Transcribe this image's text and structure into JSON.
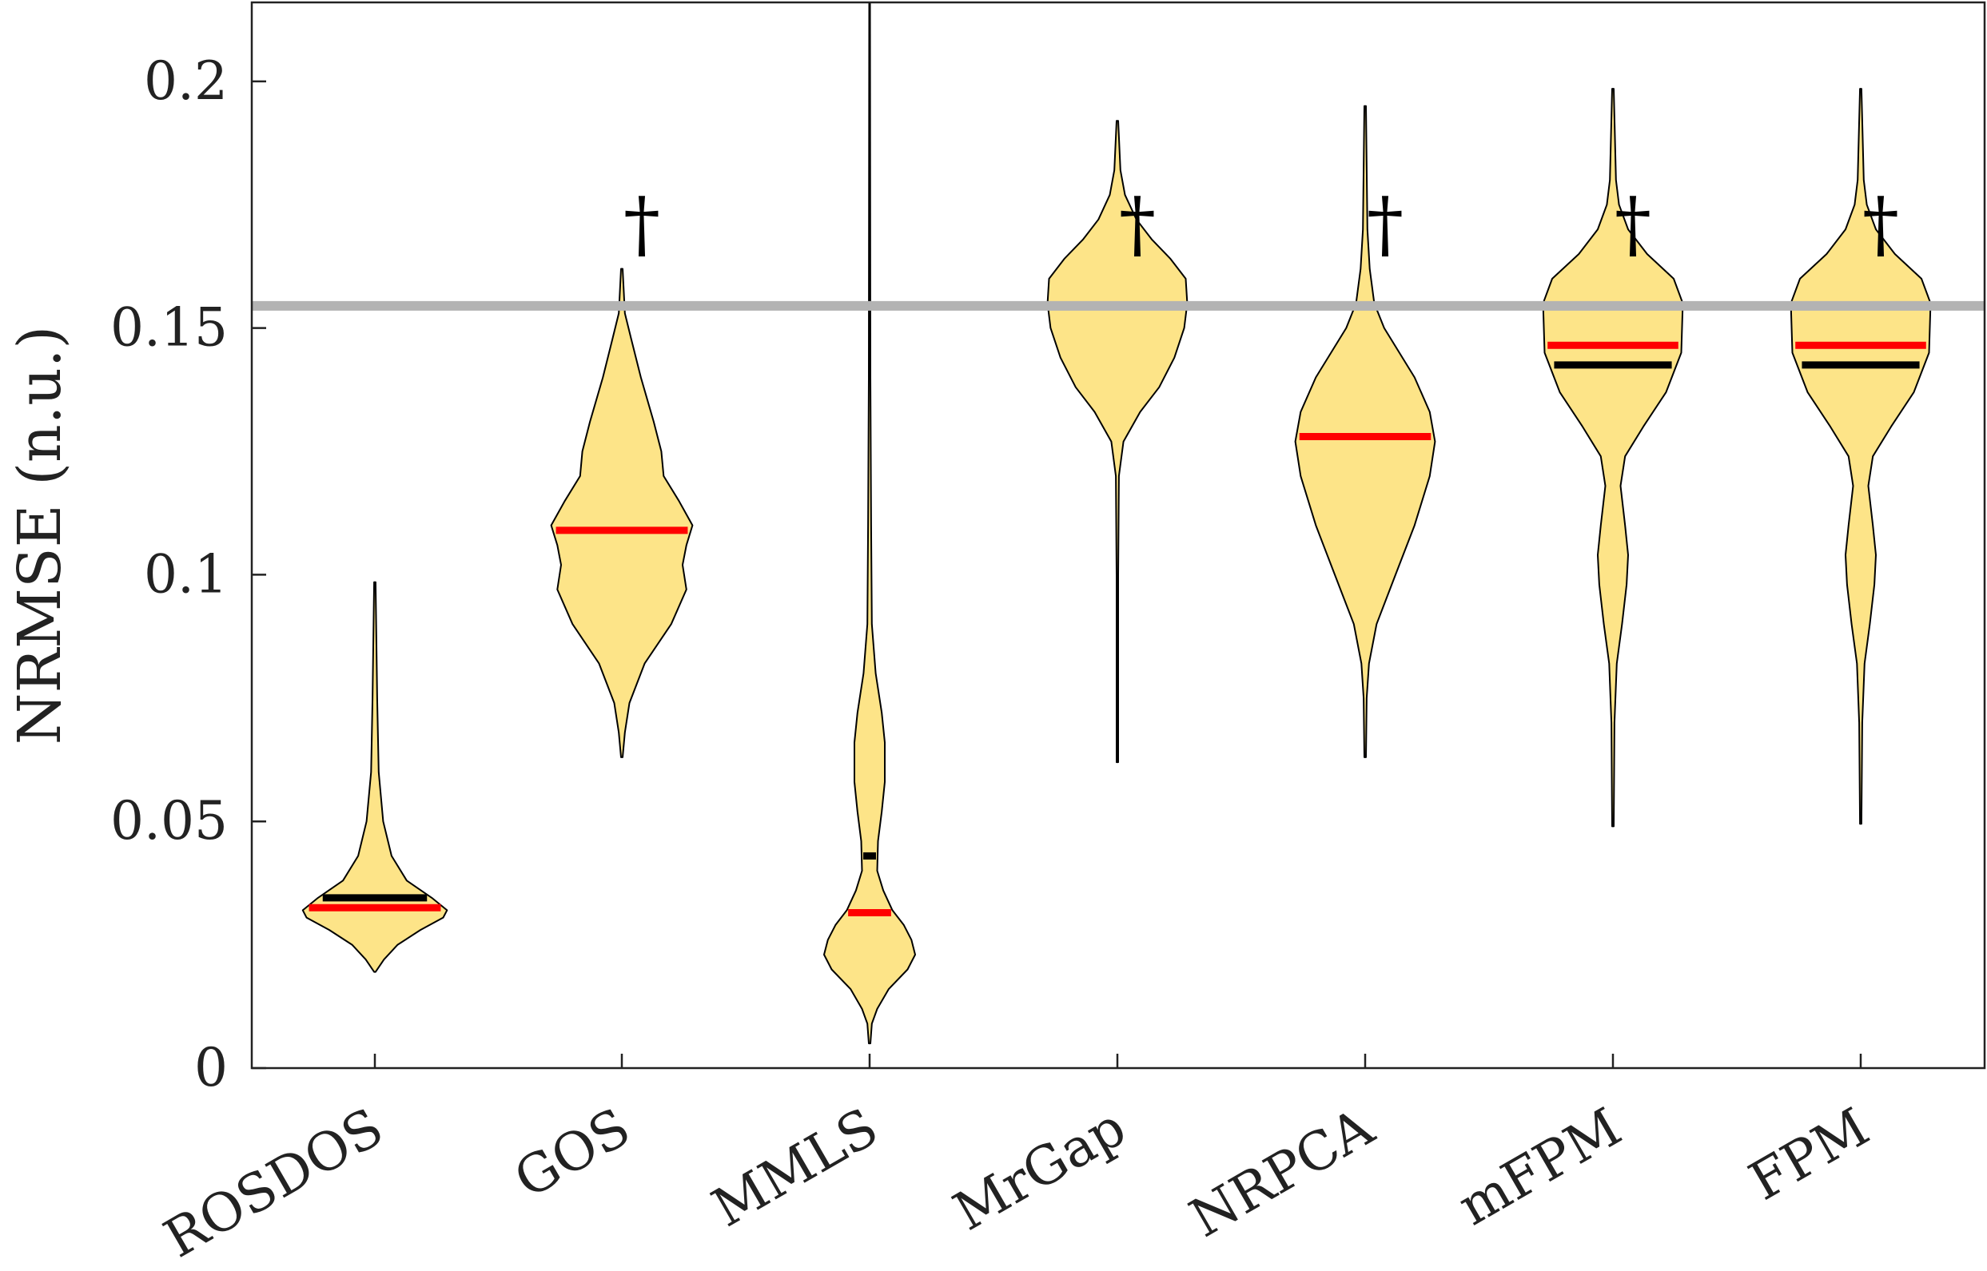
{
  "chart_data": {
    "type": "violin",
    "title": "",
    "xlabel": "",
    "ylabel": "NRMSE (n.u.)",
    "ylim": [
      0,
      0.216
    ],
    "yticks": [
      0,
      0.05,
      0.1,
      0.15,
      0.2
    ],
    "ytick_labels": [
      "0",
      "0.05",
      "0.1",
      "0.15",
      "0.2"
    ],
    "reference_line": {
      "value": 0.1545,
      "color": "#b3b3b3"
    },
    "colors": {
      "fill": "#fde488",
      "outline": "#000000",
      "median": "#ff0000",
      "mean": "#000000",
      "axis": "#222222"
    },
    "categories": [
      "ROSDOS",
      "GOS",
      "MMLS",
      "MrGap",
      "NRPCA",
      "mFPM",
      "FPM"
    ],
    "violins": [
      {
        "name": "ROSDOS",
        "median": 0.0325,
        "mean": 0.0345,
        "min": 0.0195,
        "max": 0.0985,
        "significance": "",
        "profile": [
          [
            0.0195,
            0.001
          ],
          [
            0.022,
            0.012
          ],
          [
            0.025,
            0.03
          ],
          [
            0.028,
            0.06
          ],
          [
            0.0305,
            0.09
          ],
          [
            0.032,
            0.095
          ],
          [
            0.0345,
            0.075
          ],
          [
            0.038,
            0.042
          ],
          [
            0.043,
            0.022
          ],
          [
            0.05,
            0.011
          ],
          [
            0.06,
            0.005
          ],
          [
            0.075,
            0.003
          ],
          [
            0.0985,
            0.001
          ]
        ]
      },
      {
        "name": "GOS",
        "median": 0.109,
        "mean": null,
        "min": 0.063,
        "max": 0.162,
        "significance": "†",
        "profile": [
          [
            0.063,
            0.001
          ],
          [
            0.068,
            0.004
          ],
          [
            0.074,
            0.01
          ],
          [
            0.082,
            0.03
          ],
          [
            0.09,
            0.065
          ],
          [
            0.097,
            0.085
          ],
          [
            0.102,
            0.08
          ],
          [
            0.106,
            0.085
          ],
          [
            0.11,
            0.093
          ],
          [
            0.115,
            0.075
          ],
          [
            0.12,
            0.055
          ],
          [
            0.125,
            0.052
          ],
          [
            0.131,
            0.042
          ],
          [
            0.14,
            0.025
          ],
          [
            0.148,
            0.012
          ],
          [
            0.153,
            0.004
          ],
          [
            0.162,
            0.001
          ]
        ]
      },
      {
        "name": "MMLS",
        "median": 0.0315,
        "mean": 0.043,
        "min": 0.005,
        "max": 0.216,
        "significance": "",
        "profile": [
          [
            0.005,
            0.001
          ],
          [
            0.009,
            0.003
          ],
          [
            0.012,
            0.01
          ],
          [
            0.016,
            0.025
          ],
          [
            0.02,
            0.05
          ],
          [
            0.023,
            0.06
          ],
          [
            0.026,
            0.055
          ],
          [
            0.029,
            0.045
          ],
          [
            0.032,
            0.03
          ],
          [
            0.036,
            0.018
          ],
          [
            0.04,
            0.01
          ],
          [
            0.046,
            0.011
          ],
          [
            0.052,
            0.016
          ],
          [
            0.058,
            0.02
          ],
          [
            0.066,
            0.02
          ],
          [
            0.072,
            0.016
          ],
          [
            0.08,
            0.008
          ],
          [
            0.09,
            0.003
          ],
          [
            0.11,
            0.002
          ],
          [
            0.14,
            0.001
          ],
          [
            0.216,
            0.0005
          ]
        ]
      },
      {
        "name": "MrGap",
        "median": null,
        "mean": null,
        "min": 0.062,
        "max": 0.192,
        "significance": "†",
        "profile": [
          [
            0.062,
            0.001
          ],
          [
            0.1,
            0.001
          ],
          [
            0.12,
            0.002
          ],
          [
            0.127,
            0.008
          ],
          [
            0.133,
            0.03
          ],
          [
            0.138,
            0.055
          ],
          [
            0.144,
            0.075
          ],
          [
            0.15,
            0.088
          ],
          [
            0.155,
            0.092
          ],
          [
            0.16,
            0.09
          ],
          [
            0.164,
            0.07
          ],
          [
            0.168,
            0.045
          ],
          [
            0.172,
            0.025
          ],
          [
            0.177,
            0.01
          ],
          [
            0.182,
            0.004
          ],
          [
            0.192,
            0.001
          ]
        ]
      },
      {
        "name": "NRPCA",
        "median": 0.128,
        "mean": null,
        "min": 0.063,
        "max": 0.195,
        "significance": "†",
        "profile": [
          [
            0.063,
            0.001
          ],
          [
            0.075,
            0.002
          ],
          [
            0.082,
            0.005
          ],
          [
            0.09,
            0.015
          ],
          [
            0.1,
            0.04
          ],
          [
            0.11,
            0.065
          ],
          [
            0.12,
            0.085
          ],
          [
            0.127,
            0.092
          ],
          [
            0.133,
            0.085
          ],
          [
            0.14,
            0.065
          ],
          [
            0.145,
            0.045
          ],
          [
            0.15,
            0.025
          ],
          [
            0.155,
            0.012
          ],
          [
            0.162,
            0.006
          ],
          [
            0.17,
            0.003
          ],
          [
            0.195,
            0.001
          ]
        ]
      },
      {
        "name": "mFPM",
        "median": 0.1465,
        "mean": 0.1425,
        "min": 0.049,
        "max": 0.1985,
        "significance": "†",
        "profile": [
          [
            0.049,
            0.001
          ],
          [
            0.07,
            0.002
          ],
          [
            0.082,
            0.005
          ],
          [
            0.09,
            0.012
          ],
          [
            0.098,
            0.018
          ],
          [
            0.104,
            0.02
          ],
          [
            0.11,
            0.016
          ],
          [
            0.118,
            0.01
          ],
          [
            0.124,
            0.016
          ],
          [
            0.13,
            0.04
          ],
          [
            0.137,
            0.07
          ],
          [
            0.145,
            0.09
          ],
          [
            0.155,
            0.092
          ],
          [
            0.16,
            0.08
          ],
          [
            0.165,
            0.045
          ],
          [
            0.17,
            0.02
          ],
          [
            0.175,
            0.008
          ],
          [
            0.18,
            0.004
          ],
          [
            0.1985,
            0.001
          ]
        ]
      },
      {
        "name": "FPM",
        "median": 0.1465,
        "mean": 0.1425,
        "min": 0.0495,
        "max": 0.1985,
        "significance": "†",
        "profile": [
          [
            0.0495,
            0.001
          ],
          [
            0.07,
            0.002
          ],
          [
            0.082,
            0.005
          ],
          [
            0.09,
            0.012
          ],
          [
            0.098,
            0.018
          ],
          [
            0.104,
            0.02
          ],
          [
            0.11,
            0.016
          ],
          [
            0.118,
            0.01
          ],
          [
            0.124,
            0.016
          ],
          [
            0.13,
            0.04
          ],
          [
            0.137,
            0.07
          ],
          [
            0.145,
            0.09
          ],
          [
            0.155,
            0.092
          ],
          [
            0.16,
            0.08
          ],
          [
            0.165,
            0.045
          ],
          [
            0.17,
            0.02
          ],
          [
            0.175,
            0.008
          ],
          [
            0.18,
            0.004
          ],
          [
            0.1985,
            0.001
          ]
        ]
      }
    ]
  }
}
